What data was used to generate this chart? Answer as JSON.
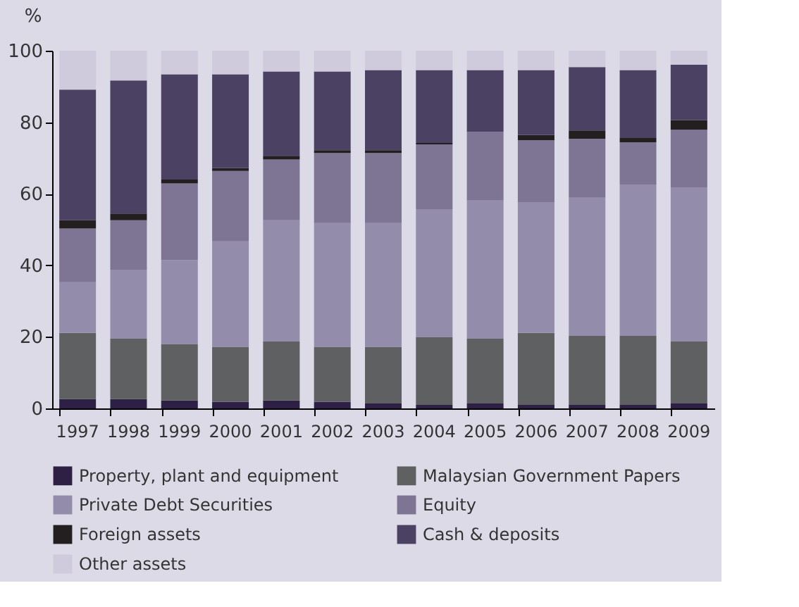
{
  "chart_data": {
    "type": "bar",
    "stacked": true,
    "ylabel": "%",
    "categories": [
      "1997",
      "1998",
      "1999",
      "2000",
      "2001",
      "2002",
      "2003",
      "2004",
      "2005",
      "2006",
      "2007",
      "2008",
      "2009"
    ],
    "ylim": [
      0,
      100
    ],
    "yticks": [
      0,
      20,
      40,
      60,
      80,
      100
    ],
    "grid": false,
    "legend": "bottom",
    "series": [
      {
        "name": "Property, plant and equipment",
        "color": "#2e1f45",
        "values": [
          2.6,
          2.6,
          2.2,
          1.8,
          2.2,
          1.8,
          1.4,
          1.0,
          1.4,
          1.0,
          1.0,
          1.0,
          1.4
        ]
      },
      {
        "name": "Malaysian Government Papers",
        "color": "#5f6062",
        "values": [
          18.5,
          16.9,
          15.8,
          15.4,
          16.5,
          15.4,
          15.8,
          18.9,
          18.1,
          20.1,
          19.3,
          19.3,
          17.3
        ]
      },
      {
        "name": "Private Debt Securities",
        "color": "#948cab",
        "values": [
          14.2,
          19.3,
          23.5,
          29.5,
          33.9,
          34.6,
          34.6,
          35.8,
          38.6,
          36.6,
          38.6,
          42.3,
          43.1
        ]
      },
      {
        "name": "Equity",
        "color": "#7d7593",
        "values": [
          15.0,
          13.8,
          21.4,
          19.7,
          17.0,
          19.6,
          19.6,
          18.1,
          19.2,
          17.3,
          16.5,
          11.8,
          16.1
        ]
      },
      {
        "name": "Foreign assets",
        "color": "#231f20",
        "values": [
          2.3,
          1.9,
          1.1,
          0.8,
          1.0,
          0.8,
          0.8,
          0.4,
          0,
          1.5,
          2.3,
          1.2,
          2.7
        ]
      },
      {
        "name": "Cash & deposits",
        "color": "#4b4163",
        "values": [
          36.5,
          37.2,
          29.4,
          26.2,
          23.6,
          22.0,
          22.4,
          20.4,
          17.3,
          18.1,
          17.7,
          19.0,
          15.5
        ]
      },
      {
        "name": "Other assets",
        "color": "#cfcbdc",
        "values": [
          10.9,
          8.3,
          6.6,
          6.6,
          5.8,
          5.8,
          5.4,
          5.4,
          5.4,
          5.4,
          4.6,
          5.4,
          3.9
        ]
      }
    ]
  }
}
